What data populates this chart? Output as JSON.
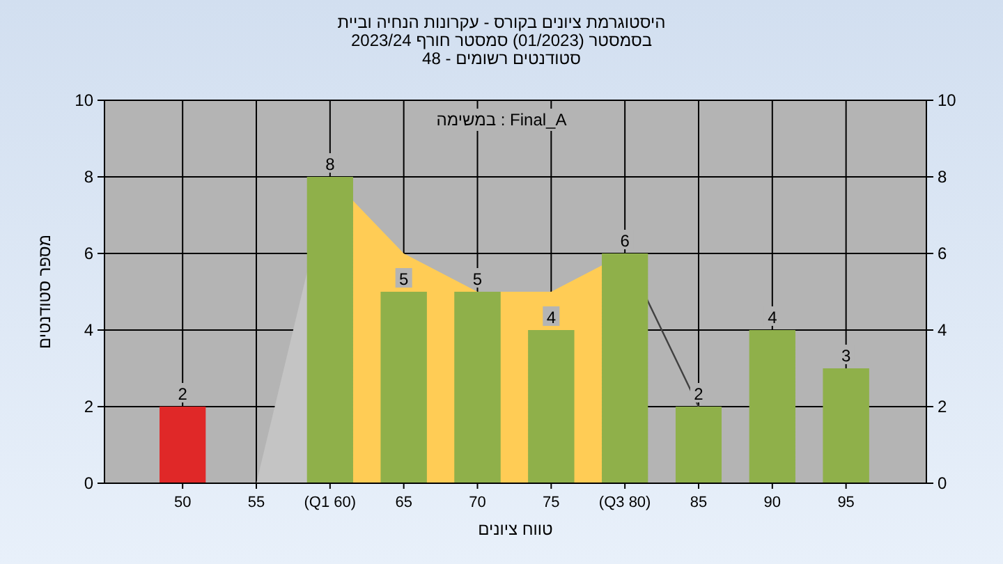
{
  "chart_data": {
    "type": "bar",
    "title": "היסטוגרמת ציונים בקורס - עקרונות הנחיה וביית",
    "subtitle": "בסמסטר (01/2023) סמסטר חורף 2023/24",
    "annotations": [
      "סטודנטים רשומים - 48",
      "במשימה : Final_A"
    ],
    "xlabel": "טווח ציונים",
    "ylabel": "מספר סטודנטים",
    "categories": [
      "50",
      "55",
      "(Q1 60)",
      "65",
      "70",
      "75",
      "(Q3 80)",
      "85",
      "90",
      "95"
    ],
    "series": [
      {
        "type": "area",
        "color": "#c4c4c4",
        "values": [
          null,
          0,
          8,
          null,
          null,
          null,
          null,
          null,
          null,
          null
        ]
      },
      {
        "type": "area",
        "color": "#ffcc55",
        "values": [
          null,
          null,
          8,
          6,
          5,
          5,
          6,
          null,
          null,
          null
        ]
      },
      {
        "type": "line",
        "color": "#404040",
        "values": [
          null,
          null,
          null,
          null,
          null,
          null,
          6,
          2,
          null,
          null
        ]
      },
      {
        "type": "bar",
        "colors": [
          "#e02828",
          "#8fb04a",
          "#8fb04a",
          "#8fb04a",
          "#8fb04a",
          "#8fb04a",
          "#8fb04a",
          "#8fb04a",
          "#8fb04a",
          "#8fb04a"
        ],
        "values": [
          2,
          0,
          8,
          5,
          5,
          4,
          6,
          2,
          4,
          3
        ],
        "value_labels": [
          "2",
          null,
          "8",
          "5",
          "5",
          "4",
          "6",
          "2",
          "4",
          "3"
        ]
      }
    ],
    "ylim": [
      0,
      10
    ],
    "yticks": [
      0,
      2,
      4,
      6,
      8,
      10
    ],
    "y2lim": [
      0,
      10
    ],
    "y2ticks": [
      0,
      2,
      4,
      6,
      8,
      10
    ],
    "grid": true
  }
}
